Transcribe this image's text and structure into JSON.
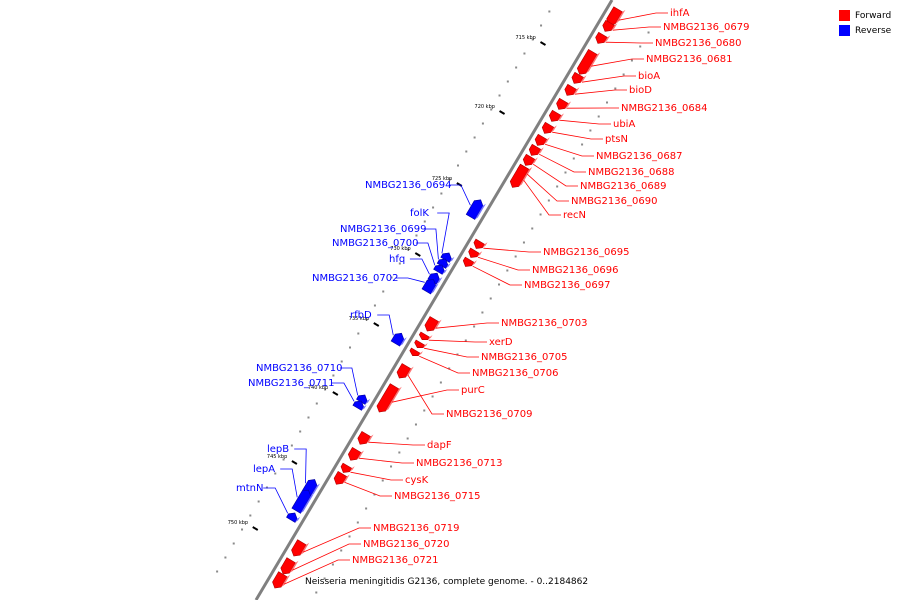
{
  "colors": {
    "forward": "#ff0000",
    "reverse": "#0000ff",
    "backbone": "#808080"
  },
  "legend": [
    {
      "label": "Forward",
      "strand": "forward"
    },
    {
      "label": "Reverse",
      "strand": "reverse"
    }
  ],
  "caption": "Neisseria meningitidis G2136, complete genome. - 0..2184862",
  "scale_ticks": [
    "715 kbp",
    "720 kbp",
    "725 kbp",
    "730 kbp",
    "735 kbp",
    "740 kbp",
    "745 kbp",
    "750 kbp"
  ],
  "genes": [
    {
      "name": "ihfA",
      "strand": "forward"
    },
    {
      "name": "NMBG2136_0679",
      "strand": "forward"
    },
    {
      "name": "NMBG2136_0680",
      "strand": "forward"
    },
    {
      "name": "NMBG2136_0681",
      "strand": "forward"
    },
    {
      "name": "bioA",
      "strand": "forward"
    },
    {
      "name": "bioD",
      "strand": "forward"
    },
    {
      "name": "NMBG2136_0684",
      "strand": "forward"
    },
    {
      "name": "ubiA",
      "strand": "forward"
    },
    {
      "name": "ptsN",
      "strand": "forward"
    },
    {
      "name": "NMBG2136_0687",
      "strand": "forward"
    },
    {
      "name": "NMBG2136_0688",
      "strand": "forward"
    },
    {
      "name": "NMBG2136_0689",
      "strand": "forward"
    },
    {
      "name": "NMBG2136_0690",
      "strand": "forward"
    },
    {
      "name": "recN",
      "strand": "forward"
    },
    {
      "name": "NMBG2136_0694",
      "strand": "reverse"
    },
    {
      "name": "NMBG2136_0695",
      "strand": "forward"
    },
    {
      "name": "NMBG2136_0696",
      "strand": "forward"
    },
    {
      "name": "NMBG2136_0697",
      "strand": "forward"
    },
    {
      "name": "folK",
      "strand": "reverse"
    },
    {
      "name": "NMBG2136_0699",
      "strand": "reverse"
    },
    {
      "name": "NMBG2136_0700",
      "strand": "reverse"
    },
    {
      "name": "hfq",
      "strand": "reverse"
    },
    {
      "name": "NMBG2136_0702",
      "strand": "reverse"
    },
    {
      "name": "rfbD",
      "strand": "reverse"
    },
    {
      "name": "NMBG2136_0703",
      "strand": "forward"
    },
    {
      "name": "xerD",
      "strand": "forward"
    },
    {
      "name": "NMBG2136_0705",
      "strand": "forward"
    },
    {
      "name": "NMBG2136_0706",
      "strand": "forward"
    },
    {
      "name": "purC",
      "strand": "forward"
    },
    {
      "name": "NMBG2136_0709",
      "strand": "forward"
    },
    {
      "name": "NMBG2136_0710",
      "strand": "reverse"
    },
    {
      "name": "NMBG2136_0711",
      "strand": "reverse"
    },
    {
      "name": "dapF",
      "strand": "forward"
    },
    {
      "name": "NMBG2136_0713",
      "strand": "forward"
    },
    {
      "name": "cysK",
      "strand": "forward"
    },
    {
      "name": "NMBG2136_0715",
      "strand": "forward"
    },
    {
      "name": "lepB",
      "strand": "reverse"
    },
    {
      "name": "lepA",
      "strand": "reverse"
    },
    {
      "name": "mtnN",
      "strand": "reverse"
    },
    {
      "name": "NMBG2136_0719",
      "strand": "forward"
    },
    {
      "name": "NMBG2136_0720",
      "strand": "forward"
    },
    {
      "name": "NMBG2136_0721",
      "strand": "forward"
    }
  ]
}
